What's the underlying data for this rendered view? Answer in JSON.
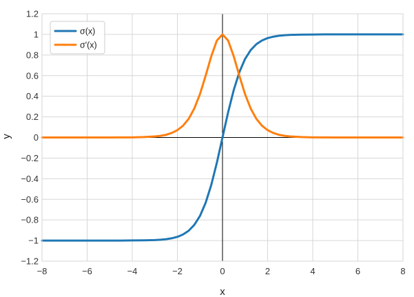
{
  "chart_data": {
    "type": "line",
    "title": "",
    "xlabel": "x",
    "ylabel": "y",
    "xlim": [
      -8,
      8
    ],
    "ylim": [
      -1.2,
      1.2
    ],
    "x_ticks": [
      -8,
      -6,
      -4,
      -2,
      0,
      2,
      4,
      6,
      8
    ],
    "y_ticks": [
      -1.2,
      -1,
      -0.8,
      -0.6,
      -0.4,
      -0.2,
      0,
      0.2,
      0.4,
      0.6,
      0.8,
      1,
      1.2
    ],
    "x_tick_labels": [
      "−8",
      "−6",
      "−4",
      "−2",
      "0",
      "2",
      "4",
      "6",
      "8"
    ],
    "y_tick_labels": [
      "−1.2",
      "−1",
      "−0.8",
      "−0.6",
      "−0.4",
      "−0.2",
      "0",
      "0.2",
      "0.4",
      "0.6",
      "0.8",
      "1",
      "1.2"
    ],
    "grid": true,
    "legend_position": "top-left",
    "x": [
      -8,
      -7.5,
      -7,
      -6.5,
      -6,
      -5.5,
      -5,
      -4.5,
      -4,
      -3.5,
      -3,
      -2.75,
      -2.5,
      -2.25,
      -2,
      -1.75,
      -1.5,
      -1.25,
      -1,
      -0.75,
      -0.5,
      -0.25,
      0,
      0.25,
      0.5,
      0.75,
      1,
      1.25,
      1.5,
      1.75,
      2,
      2.25,
      2.5,
      2.75,
      3,
      3.5,
      4,
      4.5,
      5,
      5.5,
      6,
      6.5,
      7,
      7.5,
      8
    ],
    "series": [
      {
        "name": "σ(x)",
        "color": "#1f77b4",
        "values": [
          -1.0,
          -1.0,
          -1.0,
          -1.0,
          -1.0,
          -1.0,
          -1.0,
          -1.0,
          -0.999,
          -0.998,
          -0.995,
          -0.992,
          -0.987,
          -0.978,
          -0.964,
          -0.941,
          -0.905,
          -0.848,
          -0.762,
          -0.635,
          -0.462,
          -0.245,
          0.0,
          0.245,
          0.462,
          0.635,
          0.762,
          0.848,
          0.905,
          0.941,
          0.964,
          0.978,
          0.987,
          0.992,
          0.995,
          0.998,
          0.999,
          1.0,
          1.0,
          1.0,
          1.0,
          1.0,
          1.0,
          1.0,
          1.0
        ]
      },
      {
        "name": "σ'(x)",
        "color": "#ff7f0e",
        "values": [
          0.0,
          0.0,
          0.0,
          0.0,
          0.0,
          0.0,
          0.0,
          0.001,
          0.001,
          0.004,
          0.01,
          0.016,
          0.026,
          0.044,
          0.071,
          0.114,
          0.181,
          0.281,
          0.42,
          0.597,
          0.786,
          0.94,
          1.0,
          0.94,
          0.786,
          0.597,
          0.42,
          0.281,
          0.181,
          0.114,
          0.071,
          0.044,
          0.026,
          0.016,
          0.01,
          0.004,
          0.001,
          0.001,
          0.0,
          0.0,
          0.0,
          0.0,
          0.0,
          0.0,
          0.0
        ]
      }
    ]
  }
}
